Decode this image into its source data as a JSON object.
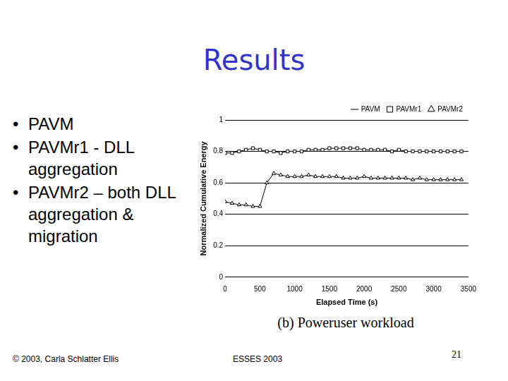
{
  "slide": {
    "title": "Results",
    "bullets": [
      "PAVM",
      "PAVMr1 - DLL aggregation",
      "PAVMr2 – both DLL aggregation & migration"
    ],
    "caption": "(b) Poweruser workload",
    "footer": {
      "left": "© 2003, Carla Schlatter Ellis",
      "center": "ESSES 2003",
      "right": "21"
    }
  },
  "chart_data": {
    "type": "line",
    "x_label": "Elapsed Time (s)",
    "y_label": "Normalized Cumulative Energy",
    "x": [
      0,
      100,
      200,
      300,
      400,
      500,
      600,
      700,
      800,
      900,
      1000,
      1100,
      1200,
      1300,
      1400,
      1500,
      1600,
      1700,
      1800,
      1900,
      2000,
      2100,
      2200,
      2300,
      2400,
      2500,
      2600,
      2700,
      2800,
      2900,
      3000,
      3100,
      3200,
      3300,
      3400
    ],
    "series": [
      {
        "name": "PAVM",
        "color": "#000000",
        "marker": "dash",
        "line_style": "solid",
        "values": [
          1,
          1,
          1,
          1,
          1,
          1,
          1,
          1,
          1,
          1,
          1,
          1,
          1,
          1,
          1,
          1,
          1,
          1,
          1,
          1,
          1,
          1,
          1,
          1,
          1,
          1,
          1,
          1,
          1,
          1,
          1,
          1,
          1,
          1,
          1
        ]
      },
      {
        "name": "PAVMr1",
        "color": "#000000",
        "marker": "square",
        "line_style": "solid",
        "values": [
          0.79,
          0.79,
          0.8,
          0.81,
          0.82,
          0.81,
          0.8,
          0.8,
          0.79,
          0.8,
          0.8,
          0.8,
          0.81,
          0.81,
          0.81,
          0.82,
          0.82,
          0.82,
          0.82,
          0.82,
          0.81,
          0.81,
          0.81,
          0.81,
          0.8,
          0.81,
          0.8,
          0.8,
          0.8,
          0.8,
          0.8,
          0.8,
          0.8,
          0.8,
          0.8
        ]
      },
      {
        "name": "PAVMr2",
        "color": "#000000",
        "marker": "triangle",
        "line_style": "solid",
        "values": [
          0.48,
          0.47,
          0.46,
          0.46,
          0.45,
          0.45,
          0.6,
          0.66,
          0.65,
          0.64,
          0.64,
          0.64,
          0.65,
          0.64,
          0.64,
          0.64,
          0.64,
          0.63,
          0.63,
          0.63,
          0.64,
          0.63,
          0.63,
          0.63,
          0.63,
          0.63,
          0.63,
          0.62,
          0.63,
          0.62,
          0.62,
          0.62,
          0.62,
          0.62,
          0.62
        ]
      }
    ],
    "xlim": [
      0,
      3500
    ],
    "xticks": [
      0,
      500,
      1000,
      1500,
      2000,
      2500,
      3000,
      3500
    ],
    "ylim": [
      0,
      1
    ],
    "yticks": [
      0,
      0.2,
      0.4,
      0.6,
      0.8,
      1
    ],
    "grid": true,
    "legend": "upper right"
  }
}
